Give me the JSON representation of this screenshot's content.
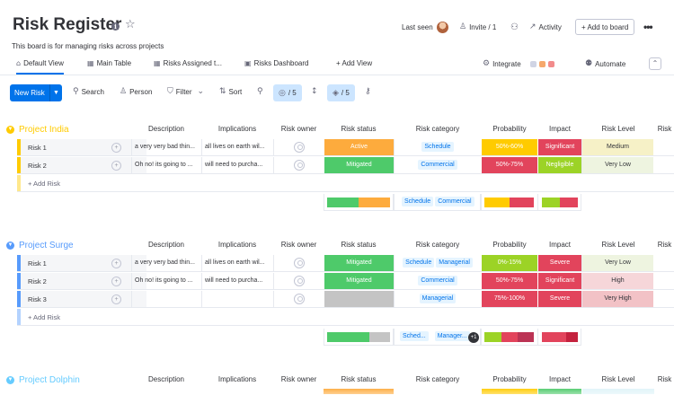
{
  "board": {
    "title": "Risk Register",
    "subtitle": "This board is for managing risks across projects",
    "info_glyph": "i",
    "star_glyph": "☆"
  },
  "header": {
    "last_seen": "Last seen",
    "invite": "Invite / 1",
    "activity": "Activity",
    "add_to_board": "+ Add to board",
    "more": "•••"
  },
  "tabs": [
    {
      "label": "Default View",
      "icon": "home-icon"
    },
    {
      "label": "Main Table",
      "icon": "table-icon"
    },
    {
      "label": "Risks Assigned t...",
      "icon": "table-icon"
    },
    {
      "label": "Risks Dashboard",
      "icon": "dashboard-icon"
    },
    {
      "label": "+ Add View"
    }
  ],
  "integrate": "Integrate",
  "automate": "Automate",
  "toolbar": {
    "new_item": "New Risk",
    "search": "Search",
    "person": "Person",
    "filter": "Filter",
    "sort": "Sort",
    "hide_count": "/ 5",
    "color_count": "/ 5"
  },
  "columns": [
    "Description",
    "Implications",
    "Risk owner",
    "Risk status",
    "Risk category",
    "Probability",
    "Impact",
    "Risk Level",
    "Risk"
  ],
  "colors": {
    "active": "#fdab3d",
    "mitigated": "#4eca6a",
    "blank": "#c4c4c4",
    "prob_low": "#ffcb00",
    "prob_mid": "#e2445c",
    "prob_high": "#e2445c",
    "significant": "#e2445c",
    "negligible": "#9cd326",
    "severe": "#e2445c",
    "level_medium": "#f6f1c7",
    "level_verylow": "#eef4e0",
    "level_high": "#f6d6d9",
    "level_veryhigh": "#f2c2c6",
    "india": "#ffcb00",
    "surge": "#579bfc",
    "dolphin": "#66ccff"
  },
  "groups": [
    {
      "name": "Project India",
      "rows": [
        {
          "name": "Risk 1",
          "description": "a very very bad thin...",
          "implications": "all lives on earth wil...",
          "status": "Active",
          "categories": [
            "Schedule"
          ],
          "probability": "50%-60%",
          "impact": "Significant",
          "level": "Medium"
        },
        {
          "name": "Risk 2",
          "description": "Oh no! its going to ...",
          "implications": "will need to purcha...",
          "status": "Mitigated",
          "categories": [
            "Commercial"
          ],
          "probability": "50%-75%",
          "impact": "Negligible",
          "level": "Very Low"
        }
      ],
      "add_label": "+ Add Risk",
      "summary_tags": [
        "Schedule",
        "Commercial"
      ]
    },
    {
      "name": "Project Surge",
      "rows": [
        {
          "name": "Risk 1",
          "description": "a very very bad thin...",
          "implications": "all lives on earth wil...",
          "status": "Mitigated",
          "categories": [
            "Schedule",
            "Managerial"
          ],
          "probability": "0%-15%",
          "impact": "Severe",
          "level": "Very Low"
        },
        {
          "name": "Risk 2",
          "description": "Oh no! its going to ...",
          "implications": "will need to purcha...",
          "status": "Mitigated",
          "categories": [
            "Commercial"
          ],
          "probability": "50%-75%",
          "impact": "Significant",
          "level": "High"
        },
        {
          "name": "Risk 3",
          "description": "",
          "implications": "",
          "status": "",
          "categories": [
            "Managerial"
          ],
          "probability": "75%-100%",
          "impact": "Severe",
          "level": "Very High"
        }
      ],
      "add_label": "+ Add Risk",
      "summary_tags": [
        "Sched...",
        "Manager..."
      ],
      "summary_more": "+1"
    },
    {
      "name": "Project Dolphin"
    }
  ]
}
